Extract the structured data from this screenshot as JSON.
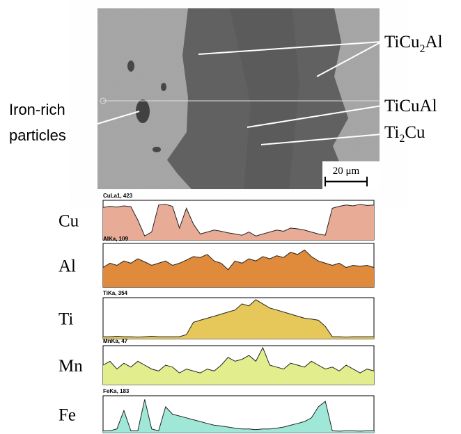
{
  "figure": {
    "image_labels": {
      "iron": [
        "Iron-rich",
        "particles"
      ],
      "ticu2al": [
        "TiCu",
        "2",
        "Al"
      ],
      "ticual": "TiCuAl",
      "ti2cu": [
        "Ti",
        "2",
        "Cu"
      ],
      "scale_bar": "20 μm"
    },
    "profiles": [
      {
        "label": "Cu",
        "header": "CuLa1, 423",
        "color": "#e8ab96",
        "values": [
          0.82,
          0.85,
          0.83,
          0.86,
          0.84,
          0.5,
          0.1,
          0.2,
          0.88,
          0.9,
          0.85,
          0.3,
          0.8,
          0.4,
          0.15,
          0.2,
          0.25,
          0.22,
          0.18,
          0.15,
          0.12,
          0.2,
          0.1,
          0.15,
          0.2,
          0.25,
          0.22,
          0.3,
          0.28,
          0.25,
          0.2,
          0.15,
          0.12,
          0.8,
          0.85,
          0.88,
          0.86,
          0.9,
          0.87,
          0.88
        ]
      },
      {
        "label": "Al",
        "header": "AlKa, 109",
        "color": "#e08a3c",
        "values": [
          0.45,
          0.55,
          0.5,
          0.6,
          0.55,
          0.65,
          0.58,
          0.5,
          0.55,
          0.6,
          0.5,
          0.55,
          0.62,
          0.7,
          0.68,
          0.75,
          0.6,
          0.55,
          0.4,
          0.6,
          0.55,
          0.65,
          0.6,
          0.7,
          0.65,
          0.72,
          0.68,
          0.8,
          0.75,
          0.85,
          0.7,
          0.6,
          0.55,
          0.5,
          0.55,
          0.45,
          0.5,
          0.48,
          0.5,
          0.45
        ]
      },
      {
        "label": "Ti",
        "header": "TiKa, 354",
        "color": "#e5c75a",
        "values": [
          0.05,
          0.05,
          0.06,
          0.05,
          0.05,
          0.04,
          0.05,
          0.06,
          0.05,
          0.05,
          0.05,
          0.05,
          0.1,
          0.4,
          0.45,
          0.5,
          0.55,
          0.6,
          0.65,
          0.7,
          0.85,
          0.8,
          0.95,
          0.85,
          0.75,
          0.7,
          0.65,
          0.6,
          0.55,
          0.5,
          0.48,
          0.45,
          0.3,
          0.05,
          0.05,
          0.04,
          0.05,
          0.05,
          0.05,
          0.05
        ]
      },
      {
        "label": "Mn",
        "header": "MnKa, 47",
        "color": "#e2ee8e",
        "values": [
          0.5,
          0.6,
          0.4,
          0.55,
          0.45,
          0.6,
          0.5,
          0.4,
          0.35,
          0.5,
          0.45,
          0.3,
          0.4,
          0.35,
          0.3,
          0.4,
          0.35,
          0.5,
          0.7,
          0.6,
          0.65,
          0.75,
          0.6,
          0.95,
          0.5,
          0.45,
          0.4,
          0.55,
          0.5,
          0.45,
          0.6,
          0.5,
          0.4,
          0.45,
          0.35,
          0.5,
          0.4,
          0.3,
          0.4,
          0.35
        ]
      },
      {
        "label": "Fe",
        "header": "FeKa, 183",
        "color": "#9fe8d8",
        "values": [
          0.05,
          0.05,
          0.1,
          0.6,
          0.05,
          0.05,
          0.9,
          0.1,
          0.05,
          0.7,
          0.5,
          0.45,
          0.4,
          0.35,
          0.3,
          0.25,
          0.2,
          0.18,
          0.15,
          0.12,
          0.1,
          0.1,
          0.08,
          0.1,
          0.1,
          0.12,
          0.15,
          0.2,
          0.25,
          0.3,
          0.4,
          0.7,
          0.85,
          0.05,
          0.04,
          0.05,
          0.05,
          0.04,
          0.05,
          0.05
        ]
      }
    ]
  }
}
